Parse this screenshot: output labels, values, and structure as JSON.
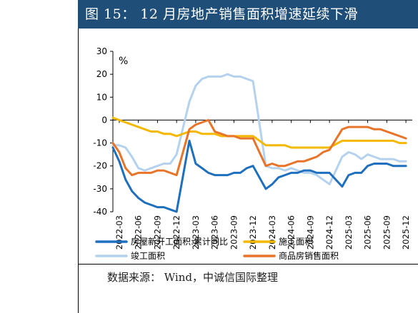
{
  "header": {
    "title": "图 15：  12 月房地产销售面积增速延续下滑"
  },
  "footer": {
    "source": "数据来源：  Wind，中诚信国际整理"
  },
  "colors": {
    "header_bg": "#1f4e79",
    "new_starts": "#1f6fbf",
    "under_construction": "#f5b800",
    "completions": "#b4d2ee",
    "sales": "#e8742a"
  },
  "chart_data": {
    "type": "line",
    "title": "",
    "ylabel": "%",
    "ylim": [
      -40,
      30
    ],
    "yticks": [
      30,
      20,
      10,
      0,
      -10,
      -20,
      -30,
      -40
    ],
    "ytick_labels": [
      "30",
      "20",
      "10",
      "0",
      "-10",
      "-20",
      "-30",
      "-40"
    ],
    "grid": false,
    "legend_position": "bottom",
    "xlim": [
      "2022-02",
      "2026-01"
    ],
    "x_tick_labels": [
      "2022-03",
      "2022-06",
      "2022-09",
      "2022-12",
      "2023-03",
      "2023-06",
      "2023-09",
      "2023-12",
      "2024-03",
      "2024-06",
      "2024-09",
      "2024-12",
      "2025-03",
      "2025-06",
      "2025-09",
      "2025-12"
    ],
    "x_tick_dates": [
      "2022-03",
      "2022-06",
      "2022-09",
      "2022-12",
      "2023-03",
      "2023-06",
      "2023-09",
      "2023-12",
      "2024-03",
      "2024-06",
      "2024-09",
      "2024-12",
      "2025-03",
      "2025-06",
      "2025-09",
      "2025-12"
    ],
    "series": [
      {
        "name": "房屋新开工面积:累计同比",
        "color": "#1f6fbf",
        "points": [
          [
            "2022-02",
            -12
          ],
          [
            "2022-03",
            -18
          ],
          [
            "2022-04",
            -26
          ],
          [
            "2022-05",
            -31
          ],
          [
            "2022-06",
            -34
          ],
          [
            "2022-07",
            -36
          ],
          [
            "2022-08",
            -37
          ],
          [
            "2022-09",
            -38
          ],
          [
            "2022-10",
            -38
          ],
          [
            "2022-11",
            -39
          ],
          [
            "2022-12",
            -40
          ],
          [
            "2023-02",
            -9
          ],
          [
            "2023-03",
            -19
          ],
          [
            "2023-04",
            -21
          ],
          [
            "2023-05",
            -23
          ],
          [
            "2023-06",
            -24
          ],
          [
            "2023-07",
            -24
          ],
          [
            "2023-08",
            -24
          ],
          [
            "2023-09",
            -23
          ],
          [
            "2023-10",
            -23
          ],
          [
            "2023-11",
            -21
          ],
          [
            "2023-12",
            -20
          ],
          [
            "2024-02",
            -30
          ],
          [
            "2024-03",
            -28
          ],
          [
            "2024-04",
            -25
          ],
          [
            "2024-05",
            -24
          ],
          [
            "2024-06",
            -23
          ],
          [
            "2024-07",
            -23
          ],
          [
            "2024-08",
            -22
          ],
          [
            "2024-09",
            -22
          ],
          [
            "2024-10",
            -23
          ],
          [
            "2024-11",
            -23
          ],
          [
            "2024-12",
            -23
          ],
          [
            "2025-02",
            -29
          ],
          [
            "2025-03",
            -24
          ],
          [
            "2025-04",
            -23
          ],
          [
            "2025-05",
            -23
          ],
          [
            "2025-06",
            -20
          ],
          [
            "2025-07",
            -19
          ],
          [
            "2025-08",
            -19
          ],
          [
            "2025-09",
            -19
          ],
          [
            "2025-10",
            -20
          ],
          [
            "2025-11",
            -20
          ],
          [
            "2025-12",
            -20
          ]
        ]
      },
      {
        "name": "施工面积",
        "color": "#f5b800",
        "points": [
          [
            "2022-02",
            1
          ],
          [
            "2022-03",
            0
          ],
          [
            "2022-04",
            -1
          ],
          [
            "2022-05",
            -2
          ],
          [
            "2022-06",
            -3
          ],
          [
            "2022-07",
            -4
          ],
          [
            "2022-08",
            -5
          ],
          [
            "2022-09",
            -5
          ],
          [
            "2022-10",
            -6
          ],
          [
            "2022-11",
            -6
          ],
          [
            "2022-12",
            -7
          ],
          [
            "2023-02",
            -5
          ],
          [
            "2023-03",
            -5
          ],
          [
            "2023-04",
            -6
          ],
          [
            "2023-05",
            -6
          ],
          [
            "2023-06",
            -6
          ],
          [
            "2023-07",
            -7
          ],
          [
            "2023-08",
            -7
          ],
          [
            "2023-09",
            -7
          ],
          [
            "2023-10",
            -7
          ],
          [
            "2023-11",
            -7
          ],
          [
            "2023-12",
            -7
          ],
          [
            "2024-02",
            -11
          ],
          [
            "2024-03",
            -11
          ],
          [
            "2024-04",
            -11
          ],
          [
            "2024-05",
            -11
          ],
          [
            "2024-06",
            -12
          ],
          [
            "2024-07",
            -12
          ],
          [
            "2024-08",
            -12
          ],
          [
            "2024-09",
            -12
          ],
          [
            "2024-10",
            -12
          ],
          [
            "2024-11",
            -12
          ],
          [
            "2024-12",
            -12
          ],
          [
            "2025-02",
            -9
          ],
          [
            "2025-03",
            -9
          ],
          [
            "2025-04",
            -9
          ],
          [
            "2025-05",
            -9
          ],
          [
            "2025-06",
            -9
          ],
          [
            "2025-07",
            -9
          ],
          [
            "2025-08",
            -9
          ],
          [
            "2025-09",
            -9
          ],
          [
            "2025-10",
            -9
          ],
          [
            "2025-11",
            -10
          ],
          [
            "2025-12",
            -10
          ]
        ]
      },
      {
        "name": "竣工面积",
        "color": "#b4d2ee",
        "points": [
          [
            "2022-02",
            -11
          ],
          [
            "2022-03",
            -11
          ],
          [
            "2022-04",
            -12
          ],
          [
            "2022-05",
            -16
          ],
          [
            "2022-06",
            -21
          ],
          [
            "2022-07",
            -22
          ],
          [
            "2022-08",
            -21
          ],
          [
            "2022-09",
            -20
          ],
          [
            "2022-10",
            -19
          ],
          [
            "2022-11",
            -19
          ],
          [
            "2022-12",
            -15
          ],
          [
            "2023-02",
            8
          ],
          [
            "2023-03",
            15
          ],
          [
            "2023-04",
            18
          ],
          [
            "2023-05",
            19
          ],
          [
            "2023-06",
            19
          ],
          [
            "2023-07",
            19
          ],
          [
            "2023-08",
            20
          ],
          [
            "2023-09",
            19
          ],
          [
            "2023-10",
            19
          ],
          [
            "2023-11",
            18
          ],
          [
            "2023-12",
            17
          ],
          [
            "2024-02",
            -20
          ],
          [
            "2024-03",
            -21
          ],
          [
            "2024-04",
            -21
          ],
          [
            "2024-05",
            -22
          ],
          [
            "2024-06",
            -21
          ],
          [
            "2024-07",
            -22
          ],
          [
            "2024-08",
            -23
          ],
          [
            "2024-09",
            -23
          ],
          [
            "2024-10",
            -24
          ],
          [
            "2024-11",
            -26
          ],
          [
            "2024-12",
            -28
          ],
          [
            "2025-02",
            -16
          ],
          [
            "2025-03",
            -14
          ],
          [
            "2025-04",
            -15
          ],
          [
            "2025-05",
            -17
          ],
          [
            "2025-06",
            -15
          ],
          [
            "2025-07",
            -16
          ],
          [
            "2025-08",
            -17
          ],
          [
            "2025-09",
            -17
          ],
          [
            "2025-10",
            -17
          ],
          [
            "2025-11",
            -18
          ],
          [
            "2025-12",
            -18
          ]
        ]
      },
      {
        "name": "商品房销售面积",
        "color": "#e8742a",
        "points": [
          [
            "2022-02",
            -10
          ],
          [
            "2022-03",
            -14
          ],
          [
            "2022-04",
            -21
          ],
          [
            "2022-05",
            -24
          ],
          [
            "2022-06",
            -23
          ],
          [
            "2022-07",
            -23
          ],
          [
            "2022-08",
            -23
          ],
          [
            "2022-09",
            -22
          ],
          [
            "2022-10",
            -22
          ],
          [
            "2022-11",
            -23
          ],
          [
            "2022-12",
            -24
          ],
          [
            "2023-02",
            -4
          ],
          [
            "2023-03",
            -2
          ],
          [
            "2023-04",
            -1
          ],
          [
            "2023-05",
            0
          ],
          [
            "2023-06",
            -5
          ],
          [
            "2023-07",
            -6
          ],
          [
            "2023-08",
            -7
          ],
          [
            "2023-09",
            -7
          ],
          [
            "2023-10",
            -8
          ],
          [
            "2023-11",
            -8
          ],
          [
            "2023-12",
            -8
          ],
          [
            "2024-02",
            -20
          ],
          [
            "2024-03",
            -19
          ],
          [
            "2024-04",
            -20
          ],
          [
            "2024-05",
            -20
          ],
          [
            "2024-06",
            -19
          ],
          [
            "2024-07",
            -18
          ],
          [
            "2024-08",
            -18
          ],
          [
            "2024-09",
            -17
          ],
          [
            "2024-10",
            -16
          ],
          [
            "2024-11",
            -14
          ],
          [
            "2024-12",
            -13
          ],
          [
            "2025-02",
            -4
          ],
          [
            "2025-03",
            -3
          ],
          [
            "2025-04",
            -3
          ],
          [
            "2025-05",
            -3
          ],
          [
            "2025-06",
            -3
          ],
          [
            "2025-07",
            -4
          ],
          [
            "2025-08",
            -4
          ],
          [
            "2025-09",
            -5
          ],
          [
            "2025-10",
            -6
          ],
          [
            "2025-11",
            -7
          ],
          [
            "2025-12",
            -8
          ]
        ]
      }
    ]
  }
}
